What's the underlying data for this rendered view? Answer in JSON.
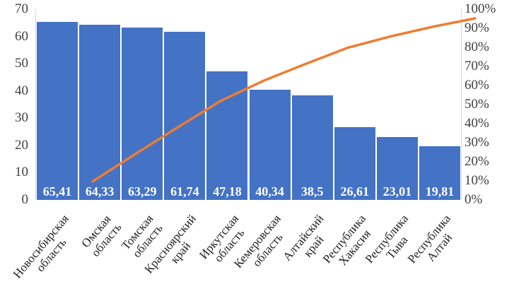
{
  "chart_data": {
    "type": "pareto",
    "title": "",
    "legend": "none",
    "grid": "off",
    "categories": [
      "Новосибирская область",
      "Омская область",
      "Томская область",
      "Красноярский край",
      "Иркутская область",
      "Кемеровская область",
      "Алтайский край",
      "Республика Хакасия",
      "Республика Тыва",
      "Республика Алтай"
    ],
    "series": [
      {
        "name": "bars",
        "type": "bar",
        "values": [
          65.41,
          64.33,
          63.29,
          61.74,
          47.18,
          40.34,
          38.5,
          26.61,
          23.01,
          19.81
        ],
        "value_labels": [
          "65,41",
          "64,33",
          "63,29",
          "61,74",
          "47,18",
          "40,34",
          "38,5",
          "26,61",
          "23,01",
          "19,81"
        ]
      },
      {
        "name": "cumulative-line",
        "type": "line",
        "values_percent": [
          14.53,
          28.82,
          42.87,
          56.59,
          67.07,
          76.03,
          84.58,
          90.49,
          95.6,
          100.0
        ]
      }
    ],
    "left_axis": {
      "min": 0,
      "max": 70,
      "ticks_top_to_bottom": [
        "70",
        "60",
        "50",
        "40",
        "30",
        "20",
        "10",
        "0"
      ]
    },
    "right_axis": {
      "min_label": "0%",
      "max_label": "100%",
      "ticks_top_to_bottom": [
        "100%",
        "90%",
        "80%",
        "70%",
        "60%",
        "50%",
        "40%",
        "30%",
        "20%",
        "10%",
        "0%"
      ]
    },
    "colors": {
      "bar": "#4472C4",
      "line": "#ED7D31",
      "axis_line": "#D9D9D9",
      "tick_text": "#404040",
      "bar_label_text": "#FFFFFF",
      "category_text": "#1F1F1F",
      "background": "#FFFFFF"
    }
  }
}
